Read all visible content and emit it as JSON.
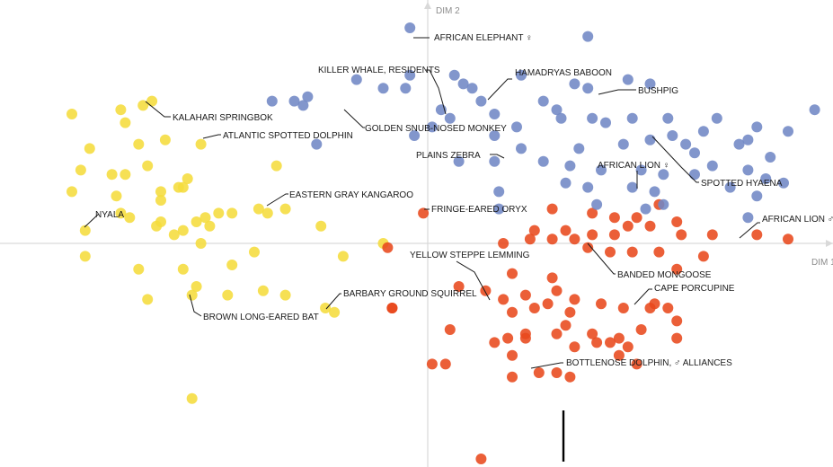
{
  "chart_data": {
    "type": "scatter",
    "title": "",
    "xlabel": "DIM 1",
    "ylabel": "DIM 2",
    "xlim": [
      -9.5,
      9.1
    ],
    "ylim": [
      -5.0,
      5.3
    ],
    "grid": false,
    "legend": "none",
    "series": [
      {
        "color": "#f5dc3c",
        "points": [
          [
            -8.0,
            3.0
          ],
          [
            -6.9,
            3.1
          ],
          [
            -6.4,
            3.2
          ],
          [
            -6.2,
            3.3
          ],
          [
            -5.9,
            2.4
          ],
          [
            -6.5,
            2.3
          ],
          [
            -5.1,
            2.3
          ],
          [
            -7.6,
            2.2
          ],
          [
            -6.3,
            1.8
          ],
          [
            -7.1,
            1.6
          ],
          [
            -6.8,
            1.6
          ],
          [
            -5.6,
            1.3
          ],
          [
            -8.0,
            1.2
          ],
          [
            -7.0,
            1.1
          ],
          [
            -6.0,
            1.2
          ],
          [
            -5.4,
            1.5
          ],
          [
            -5.5,
            1.3
          ],
          [
            -6.0,
            1.0
          ],
          [
            -3.4,
            1.8
          ],
          [
            -4.4,
            0.7
          ],
          [
            -4.7,
            0.7
          ],
          [
            -3.8,
            0.8
          ],
          [
            -3.6,
            0.7
          ],
          [
            -3.2,
            0.8
          ],
          [
            -6.9,
            0.7
          ],
          [
            -6.0,
            0.5
          ],
          [
            -7.7,
            0.3
          ],
          [
            -6.7,
            0.6
          ],
          [
            -6.1,
            0.4
          ],
          [
            -5.2,
            0.5
          ],
          [
            -5.7,
            0.2
          ],
          [
            -5.0,
            0.6
          ],
          [
            -5.1,
            0.0
          ],
          [
            -4.9,
            0.4
          ],
          [
            -5.5,
            0.3
          ],
          [
            -7.7,
            -0.3
          ],
          [
            -6.5,
            -0.6
          ],
          [
            -5.5,
            -0.6
          ],
          [
            -4.4,
            -0.5
          ],
          [
            -3.9,
            -0.2
          ],
          [
            -6.3,
            -1.3
          ],
          [
            -5.3,
            -1.2
          ],
          [
            -5.2,
            -1.0
          ],
          [
            -4.5,
            -1.2
          ],
          [
            -3.2,
            -1.2
          ],
          [
            -1.9,
            -0.3
          ],
          [
            -2.3,
            -1.5
          ],
          [
            -2.1,
            -1.6
          ],
          [
            -1.0,
            0.0
          ],
          [
            -5.3,
            -3.6
          ],
          [
            -3.7,
            -1.1
          ],
          [
            -2.4,
            0.4
          ],
          [
            -6.8,
            2.8
          ],
          [
            -7.8,
            1.7
          ]
        ]
      },
      {
        "color": "#e8491d",
        "points": [
          [
            -0.1,
            0.7
          ],
          [
            2.8,
            0.8
          ],
          [
            3.7,
            0.7
          ],
          [
            4.2,
            0.6
          ],
          [
            4.7,
            0.6
          ],
          [
            5.2,
            0.9
          ],
          [
            5.6,
            0.5
          ],
          [
            2.4,
            0.3
          ],
          [
            3.1,
            0.3
          ],
          [
            3.7,
            0.2
          ],
          [
            4.2,
            0.2
          ],
          [
            4.5,
            0.4
          ],
          [
            5.0,
            0.4
          ],
          [
            5.7,
            0.2
          ],
          [
            6.4,
            0.2
          ],
          [
            7.4,
            0.2
          ],
          [
            8.1,
            0.1
          ],
          [
            1.7,
            0.0
          ],
          [
            2.3,
            0.1
          ],
          [
            2.8,
            0.1
          ],
          [
            3.3,
            0.1
          ],
          [
            3.6,
            -0.1
          ],
          [
            4.1,
            -0.2
          ],
          [
            4.6,
            -0.2
          ],
          [
            5.2,
            -0.2
          ],
          [
            5.6,
            -0.6
          ],
          [
            6.2,
            -0.3
          ],
          [
            1.9,
            -0.7
          ],
          [
            2.8,
            -0.8
          ],
          [
            2.2,
            -1.2
          ],
          [
            2.9,
            -1.1
          ],
          [
            3.3,
            -1.3
          ],
          [
            3.9,
            -1.4
          ],
          [
            4.4,
            -1.5
          ],
          [
            5.1,
            -1.4
          ],
          [
            3.1,
            -1.9
          ],
          [
            3.7,
            -2.1
          ],
          [
            4.3,
            -2.2
          ],
          [
            4.8,
            -2.0
          ],
          [
            5.6,
            -1.8
          ],
          [
            0.7,
            -1.0
          ],
          [
            1.3,
            -1.1
          ],
          [
            1.7,
            -1.3
          ],
          [
            1.9,
            -1.6
          ],
          [
            2.4,
            -1.5
          ],
          [
            3.2,
            -1.6
          ],
          [
            5.0,
            -1.5
          ],
          [
            5.4,
            -1.5
          ],
          [
            2.7,
            -1.4
          ],
          [
            2.2,
            -2.1
          ],
          [
            2.9,
            -2.1
          ],
          [
            3.3,
            -2.4
          ],
          [
            3.8,
            -2.3
          ],
          [
            4.1,
            -2.3
          ],
          [
            4.5,
            -2.4
          ],
          [
            5.6,
            -2.2
          ],
          [
            -0.8,
            -1.5
          ],
          [
            0.5,
            -2.0
          ],
          [
            1.5,
            -2.3
          ],
          [
            1.8,
            -2.2
          ],
          [
            2.2,
            -2.2
          ],
          [
            1.9,
            -2.6
          ],
          [
            0.1,
            -2.8
          ],
          [
            0.4,
            -2.8
          ],
          [
            1.9,
            -3.1
          ],
          [
            2.5,
            -3.0
          ],
          [
            2.9,
            -3.0
          ],
          [
            3.2,
            -3.1
          ],
          [
            4.3,
            -2.6
          ],
          [
            1.2,
            -5.0
          ],
          [
            -0.8,
            -1.5
          ],
          [
            -0.9,
            -0.1
          ],
          [
            4.7,
            -2.8
          ]
        ]
      },
      {
        "color": "#7188c5",
        "points": [
          [
            -0.4,
            5.0
          ],
          [
            3.6,
            4.8
          ],
          [
            -1.6,
            3.8
          ],
          [
            -0.4,
            3.9
          ],
          [
            -3.5,
            3.3
          ],
          [
            -2.8,
            3.2
          ],
          [
            -2.7,
            3.4
          ],
          [
            -1.0,
            3.6
          ],
          [
            -0.5,
            3.6
          ],
          [
            0.6,
            3.9
          ],
          [
            0.8,
            3.7
          ],
          [
            1.0,
            3.6
          ],
          [
            2.1,
            3.9
          ],
          [
            3.3,
            3.7
          ],
          [
            3.6,
            3.6
          ],
          [
            4.5,
            3.8
          ],
          [
            5.0,
            3.7
          ],
          [
            2.6,
            3.3
          ],
          [
            1.2,
            3.3
          ],
          [
            2.9,
            3.1
          ],
          [
            3.0,
            2.9
          ],
          [
            3.7,
            2.9
          ],
          [
            4.6,
            2.9
          ],
          [
            5.4,
            2.9
          ],
          [
            6.5,
            2.9
          ],
          [
            7.4,
            2.7
          ],
          [
            8.1,
            2.6
          ],
          [
            8.7,
            3.1
          ],
          [
            -2.5,
            2.3
          ],
          [
            -0.3,
            2.5
          ],
          [
            0.1,
            2.7
          ],
          [
            1.5,
            2.5
          ],
          [
            2.1,
            2.2
          ],
          [
            3.4,
            2.2
          ],
          [
            4.4,
            2.3
          ],
          [
            5.0,
            2.4
          ],
          [
            5.5,
            2.5
          ],
          [
            6.0,
            2.1
          ],
          [
            7.0,
            2.3
          ],
          [
            7.2,
            2.4
          ],
          [
            0.7,
            1.9
          ],
          [
            1.5,
            1.9
          ],
          [
            2.6,
            1.9
          ],
          [
            3.2,
            1.8
          ],
          [
            3.9,
            1.7
          ],
          [
            4.8,
            1.7
          ],
          [
            5.3,
            1.6
          ],
          [
            6.0,
            1.6
          ],
          [
            6.4,
            1.8
          ],
          [
            7.2,
            1.7
          ],
          [
            7.6,
            1.5
          ],
          [
            8.0,
            1.4
          ],
          [
            1.6,
            1.2
          ],
          [
            3.1,
            1.4
          ],
          [
            3.6,
            1.3
          ],
          [
            4.6,
            1.3
          ],
          [
            5.1,
            1.2
          ],
          [
            6.8,
            1.3
          ],
          [
            7.4,
            1.1
          ],
          [
            1.6,
            0.8
          ],
          [
            3.8,
            0.9
          ],
          [
            4.9,
            0.8
          ],
          [
            5.3,
            0.9
          ],
          [
            7.2,
            0.6
          ],
          [
            -3.0,
            3.3
          ],
          [
            0.3,
            3.1
          ],
          [
            1.5,
            3.0
          ],
          [
            4.0,
            2.8
          ],
          [
            6.2,
            2.6
          ],
          [
            5.8,
            2.3
          ],
          [
            7.7,
            2.0
          ],
          [
            2.0,
            2.7
          ],
          [
            0.5,
            2.9
          ]
        ]
      }
    ],
    "annotations": [
      {
        "text": "AFRICAN ELEPHANT ♀"
      },
      {
        "text": "KILLER WHALE, RESIDENTS"
      },
      {
        "text": "HAMADRYAS BABOON"
      },
      {
        "text": "BUSHPIG"
      },
      {
        "text": "KALAHARI SPRINGBOK"
      },
      {
        "text": "GOLDEN SNUB-NOSED MONKEY"
      },
      {
        "text": "ATLANTIC SPOTTED DOLPHIN"
      },
      {
        "text": "PLAINS ZEBRA"
      },
      {
        "text": "AFRICAN LION ♀"
      },
      {
        "text": "SPOTTED HYAENA"
      },
      {
        "text": "EASTERN GRAY KANGAROO"
      },
      {
        "text": "FRINGE-EARED ORYX"
      },
      {
        "text": "NYALA"
      },
      {
        "text": "AFRICAN LION ♂"
      },
      {
        "text": "YELLOW STEPPE LEMMING"
      },
      {
        "text": "BANDED MONGOOSE"
      },
      {
        "text": "CAPE PORCUPINE"
      },
      {
        "text": "BARBARY GROUND SQUIRREL"
      },
      {
        "text": "BROWN LONG-EARED BAT"
      },
      {
        "text": "BOTTLENOSE DOLPHIN, ♂ ALLIANCES"
      }
    ]
  }
}
